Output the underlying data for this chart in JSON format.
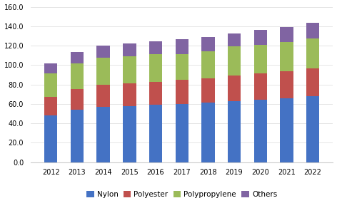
{
  "years": [
    "2012",
    "2013",
    "2014",
    "2015",
    "2016",
    "2017",
    "2018",
    "2019",
    "2020",
    "2021",
    "2022"
  ],
  "nylon": [
    48.5,
    54.0,
    57.0,
    57.5,
    59.5,
    60.0,
    61.5,
    63.0,
    64.5,
    65.5,
    68.0
  ],
  "polyester": [
    19.0,
    21.0,
    22.5,
    24.0,
    23.5,
    25.0,
    25.0,
    26.0,
    27.0,
    28.0,
    28.5
  ],
  "polypropylene": [
    24.0,
    27.0,
    28.0,
    27.5,
    28.0,
    26.5,
    28.0,
    30.0,
    29.0,
    30.5,
    31.0
  ],
  "others": [
    10.0,
    11.5,
    12.5,
    13.5,
    13.5,
    15.5,
    14.5,
    13.5,
    15.5,
    15.5,
    16.0
  ],
  "colors": {
    "nylon": "#4472c4",
    "polyester": "#c0504d",
    "polypropylene": "#9bbb59",
    "others": "#8064a2"
  },
  "ylim": [
    0,
    160
  ],
  "yticks": [
    0.0,
    20.0,
    40.0,
    60.0,
    80.0,
    100.0,
    120.0,
    140.0,
    160.0
  ],
  "background_color": "#ffffff",
  "grid_color": "#e0e0e0",
  "bar_width": 0.5
}
